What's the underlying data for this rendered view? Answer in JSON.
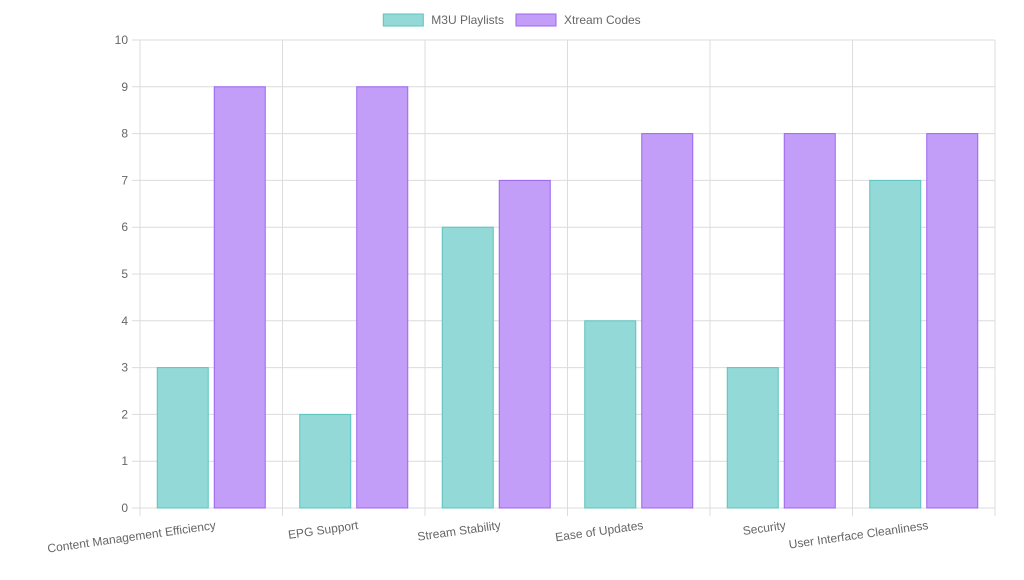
{
  "chart_data": {
    "type": "bar",
    "title": "",
    "xlabel": "",
    "ylabel": "",
    "legend_position": "top-center",
    "grid": true,
    "categories": [
      "Content Management Efficiency",
      "EPG Support",
      "Stream Stability",
      "Ease of Updates",
      "Security",
      "User Interface Cleanliness"
    ],
    "series": [
      {
        "name": "M3U Playlists",
        "values": [
          3,
          2,
          6,
          4,
          3,
          7
        ],
        "fill": "#92d9d7",
        "stroke": "#5cc3bd"
      },
      {
        "name": "Xtream Codes",
        "values": [
          9,
          9,
          7,
          8,
          8,
          8
        ],
        "fill": "#c29ef9",
        "stroke": "#9d63f2"
      }
    ],
    "ylim": [
      0,
      10
    ],
    "yticks": [
      "0",
      "1",
      "2",
      "3",
      "4",
      "5",
      "6",
      "7",
      "8",
      "9",
      "10"
    ]
  },
  "colors": {
    "grid": "#dcdcdc",
    "axis_text": "#666666"
  }
}
